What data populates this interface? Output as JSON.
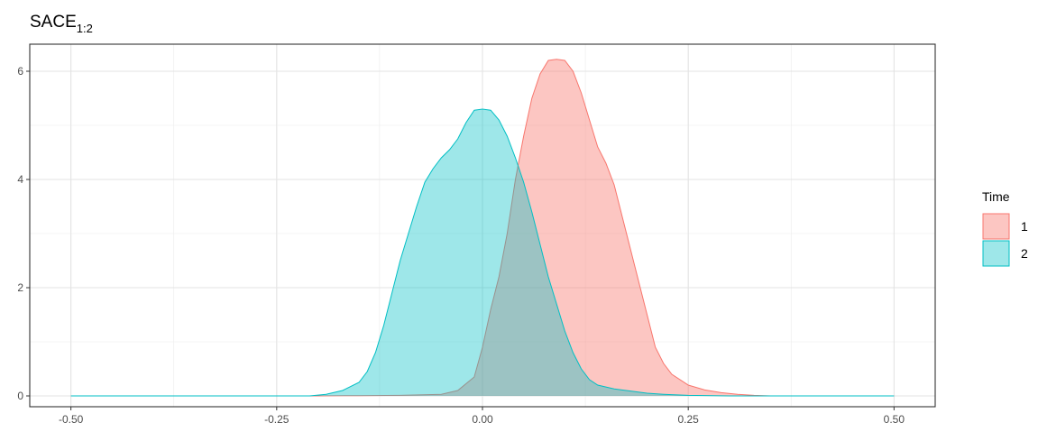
{
  "chart_data": {
    "type": "area",
    "title": {
      "main": "SACE",
      "subscript": "1:2"
    },
    "xlabel": "",
    "ylabel": "",
    "xlim": [
      -0.55,
      0.55
    ],
    "ylim": [
      -0.2,
      6.5
    ],
    "x_ticks": [
      {
        "value": -0.5,
        "label": "-0.50"
      },
      {
        "value": -0.25,
        "label": "-0.25"
      },
      {
        "value": 0.0,
        "label": "0.00"
      },
      {
        "value": 0.25,
        "label": "0.25"
      },
      {
        "value": 0.5,
        "label": "0.50"
      }
    ],
    "y_ticks": [
      {
        "value": 0,
        "label": "0"
      },
      {
        "value": 2,
        "label": "2"
      },
      {
        "value": 4,
        "label": "4"
      },
      {
        "value": 6,
        "label": "6"
      }
    ],
    "grid": true,
    "legend": {
      "title": "Time",
      "position": "right"
    },
    "series": [
      {
        "name": "1",
        "fill": "#F8766D",
        "fill_opacity": 0.42,
        "stroke": "#F8766D",
        "points": [
          [
            -0.5,
            0
          ],
          [
            -0.2,
            0
          ],
          [
            -0.15,
            0.005
          ],
          [
            -0.1,
            0.01
          ],
          [
            -0.05,
            0.03
          ],
          [
            -0.03,
            0.1
          ],
          [
            -0.01,
            0.35
          ],
          [
            0.0,
            0.9
          ],
          [
            0.01,
            1.6
          ],
          [
            0.02,
            2.2
          ],
          [
            0.03,
            3.0
          ],
          [
            0.04,
            4.0
          ],
          [
            0.05,
            4.8
          ],
          [
            0.06,
            5.5
          ],
          [
            0.07,
            5.95
          ],
          [
            0.08,
            6.2
          ],
          [
            0.09,
            6.22
          ],
          [
            0.1,
            6.2
          ],
          [
            0.11,
            6.0
          ],
          [
            0.12,
            5.6
          ],
          [
            0.13,
            5.1
          ],
          [
            0.14,
            4.6
          ],
          [
            0.15,
            4.3
          ],
          [
            0.16,
            3.9
          ],
          [
            0.17,
            3.3
          ],
          [
            0.18,
            2.7
          ],
          [
            0.19,
            2.1
          ],
          [
            0.2,
            1.5
          ],
          [
            0.21,
            0.9
          ],
          [
            0.22,
            0.6
          ],
          [
            0.23,
            0.4
          ],
          [
            0.25,
            0.2
          ],
          [
            0.27,
            0.11
          ],
          [
            0.29,
            0.06
          ],
          [
            0.31,
            0.03
          ],
          [
            0.33,
            0.01
          ],
          [
            0.35,
            0
          ],
          [
            0.5,
            0
          ]
        ]
      },
      {
        "name": "2",
        "fill": "#00BFC4",
        "fill_opacity": 0.38,
        "stroke": "#00BFC4",
        "points": [
          [
            -0.5,
            0
          ],
          [
            -0.21,
            0
          ],
          [
            -0.19,
            0.03
          ],
          [
            -0.17,
            0.1
          ],
          [
            -0.15,
            0.25
          ],
          [
            -0.14,
            0.45
          ],
          [
            -0.13,
            0.8
          ],
          [
            -0.12,
            1.3
          ],
          [
            -0.11,
            1.9
          ],
          [
            -0.1,
            2.5
          ],
          [
            -0.09,
            3.0
          ],
          [
            -0.08,
            3.5
          ],
          [
            -0.07,
            3.95
          ],
          [
            -0.06,
            4.2
          ],
          [
            -0.05,
            4.4
          ],
          [
            -0.04,
            4.55
          ],
          [
            -0.03,
            4.75
          ],
          [
            -0.02,
            5.05
          ],
          [
            -0.01,
            5.28
          ],
          [
            0.0,
            5.3
          ],
          [
            0.01,
            5.28
          ],
          [
            0.02,
            5.1
          ],
          [
            0.03,
            4.8
          ],
          [
            0.04,
            4.4
          ],
          [
            0.05,
            3.95
          ],
          [
            0.06,
            3.4
          ],
          [
            0.07,
            2.8
          ],
          [
            0.08,
            2.2
          ],
          [
            0.09,
            1.7
          ],
          [
            0.1,
            1.2
          ],
          [
            0.11,
            0.8
          ],
          [
            0.12,
            0.5
          ],
          [
            0.13,
            0.3
          ],
          [
            0.14,
            0.2
          ],
          [
            0.16,
            0.13
          ],
          [
            0.18,
            0.09
          ],
          [
            0.2,
            0.05
          ],
          [
            0.22,
            0.03
          ],
          [
            0.25,
            0.01
          ],
          [
            0.3,
            0
          ],
          [
            0.5,
            0
          ]
        ]
      }
    ]
  }
}
